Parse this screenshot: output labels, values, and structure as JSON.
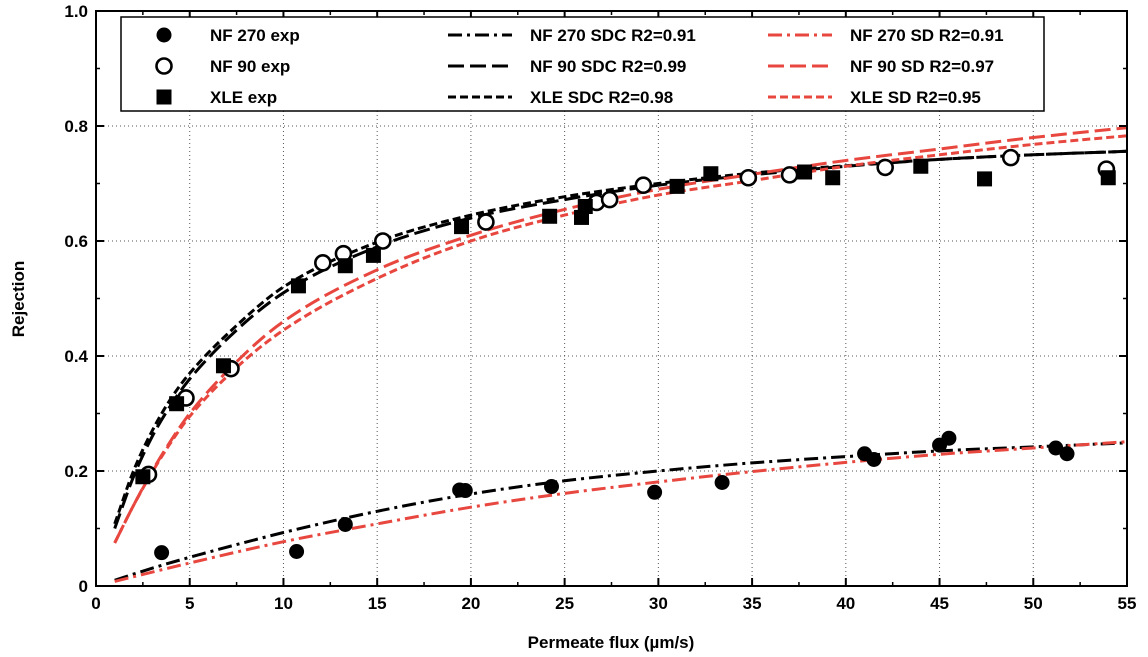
{
  "chart_data": {
    "type": "scatter",
    "title": "",
    "xlabel": "Permeate flux (µm/s)",
    "ylabel": "Rejection",
    "xlim": [
      0,
      55
    ],
    "ylim": [
      0,
      1.0
    ],
    "x_ticks": [
      0,
      5,
      10,
      15,
      20,
      25,
      30,
      35,
      40,
      45,
      50,
      55
    ],
    "y_ticks": [
      0,
      0.2,
      0.4,
      0.6,
      0.8,
      1.0
    ],
    "x_tick_labels": [
      "0",
      "5",
      "10",
      "15",
      "20",
      "25",
      "30",
      "35",
      "40",
      "45",
      "50",
      "55"
    ],
    "y_tick_labels": [
      "0",
      "0.2",
      "0.4",
      "0.6",
      "0.8",
      "1.0"
    ],
    "grid": true,
    "legend_position": "top",
    "colors": {
      "black": "#000000",
      "red": "#e8473f"
    },
    "series": [
      {
        "name": "NF 270 exp",
        "kind": "points",
        "marker": "filled-circle",
        "color": "#000000",
        "x": [
          3.5,
          10.7,
          13.3,
          19.4,
          19.7,
          24.3,
          29.8,
          33.4,
          41.0,
          41.5,
          45.0,
          45.5,
          51.2,
          51.8
        ],
        "y": [
          0.058,
          0.06,
          0.107,
          0.167,
          0.166,
          0.173,
          0.163,
          0.18,
          0.23,
          0.22,
          0.245,
          0.257,
          0.24,
          0.23
        ]
      },
      {
        "name": "NF 90 exp",
        "kind": "points",
        "marker": "open-circle",
        "color": "#000000",
        "x": [
          2.8,
          4.8,
          7.2,
          12.1,
          13.2,
          15.3,
          20.8,
          26.7,
          27.4,
          29.2,
          34.8,
          37.0,
          42.1,
          48.8,
          53.9
        ],
        "y": [
          0.194,
          0.327,
          0.378,
          0.562,
          0.578,
          0.6,
          0.633,
          0.667,
          0.672,
          0.697,
          0.71,
          0.715,
          0.728,
          0.745,
          0.725
        ]
      },
      {
        "name": "XLE exp",
        "kind": "points",
        "marker": "filled-square",
        "color": "#000000",
        "x": [
          2.5,
          4.3,
          6.8,
          10.8,
          13.3,
          14.8,
          19.5,
          24.2,
          25.9,
          26.1,
          31.0,
          32.8,
          37.8,
          39.3,
          44.0,
          47.4,
          54.0
        ],
        "y": [
          0.19,
          0.317,
          0.383,
          0.522,
          0.557,
          0.575,
          0.625,
          0.643,
          0.641,
          0.66,
          0.695,
          0.717,
          0.72,
          0.71,
          0.73,
          0.708,
          0.71
        ]
      },
      {
        "name": "NF 270 SDC R2=0.91",
        "kind": "line",
        "dash": "dash-dot",
        "color": "#000000",
        "width": 3,
        "x": [
          1,
          3,
          5,
          7.5,
          10,
          15,
          20,
          25,
          30,
          35,
          40,
          45,
          50,
          55
        ],
        "y": [
          0.01,
          0.031,
          0.05,
          0.072,
          0.093,
          0.13,
          0.16,
          0.183,
          0.2,
          0.214,
          0.225,
          0.235,
          0.242,
          0.249
        ]
      },
      {
        "name": "NF 90 SDC R2=0.99",
        "kind": "line",
        "dash": "long-dash",
        "color": "#000000",
        "width": 3,
        "x": [
          1,
          2,
          3,
          4,
          5,
          7.5,
          10,
          15,
          20,
          25,
          30,
          35,
          40,
          45,
          50,
          55
        ],
        "y": [
          0.1,
          0.19,
          0.26,
          0.315,
          0.36,
          0.445,
          0.51,
          0.59,
          0.64,
          0.672,
          0.697,
          0.715,
          0.73,
          0.742,
          0.75,
          0.756
        ]
      },
      {
        "name": "XLE SDC R2=0.98",
        "kind": "line",
        "dash": "short-dash",
        "color": "#000000",
        "width": 3,
        "x": [
          1,
          2,
          3,
          4,
          5,
          7.5,
          10,
          15,
          20,
          25,
          30,
          35,
          40,
          45,
          50,
          55
        ],
        "y": [
          0.108,
          0.2,
          0.27,
          0.326,
          0.37,
          0.453,
          0.52,
          0.598,
          0.645,
          0.677,
          0.7,
          0.718,
          0.731,
          0.742,
          0.75,
          0.756
        ]
      },
      {
        "name": "NF 270 SD R2=0.91",
        "kind": "line",
        "dash": "dash-dot",
        "color": "#e8473f",
        "width": 3,
        "x": [
          1,
          5,
          10,
          15,
          20,
          25,
          30,
          35,
          40,
          45,
          50,
          55
        ],
        "y": [
          0.008,
          0.04,
          0.077,
          0.108,
          0.137,
          0.161,
          0.181,
          0.199,
          0.215,
          0.229,
          0.24,
          0.251
        ]
      },
      {
        "name": "NF 90 SD R2=0.97",
        "kind": "line",
        "dash": "long-dash",
        "color": "#e8473f",
        "width": 3,
        "x": [
          1,
          2,
          3,
          4,
          5,
          7.5,
          10,
          15,
          20,
          25,
          30,
          35,
          40,
          45,
          50,
          55
        ],
        "y": [
          0.075,
          0.14,
          0.2,
          0.253,
          0.3,
          0.39,
          0.46,
          0.55,
          0.61,
          0.655,
          0.69,
          0.716,
          0.74,
          0.76,
          0.78,
          0.797
        ]
      },
      {
        "name": "XLE SD R2=0.95",
        "kind": "line",
        "dash": "short-dash",
        "color": "#e8473f",
        "width": 3,
        "x": [
          1,
          2,
          3,
          4,
          5,
          7.5,
          10,
          15,
          20,
          25,
          30,
          35,
          40,
          45,
          50,
          55
        ],
        "y": [
          0.075,
          0.14,
          0.198,
          0.25,
          0.295,
          0.38,
          0.445,
          0.535,
          0.6,
          0.645,
          0.68,
          0.705,
          0.73,
          0.75,
          0.768,
          0.783
        ]
      }
    ],
    "legend": [
      [
        "NF 270 exp",
        "NF 270 SDC R2=0.91",
        "NF 270 SD R2=0.91"
      ],
      [
        "NF 90 exp",
        "NF 90 SDC R2=0.99",
        "NF 90 SD R2=0.97"
      ],
      [
        "XLE exp",
        "XLE SDC R2=0.98",
        "XLE SD R2=0.95"
      ]
    ]
  }
}
